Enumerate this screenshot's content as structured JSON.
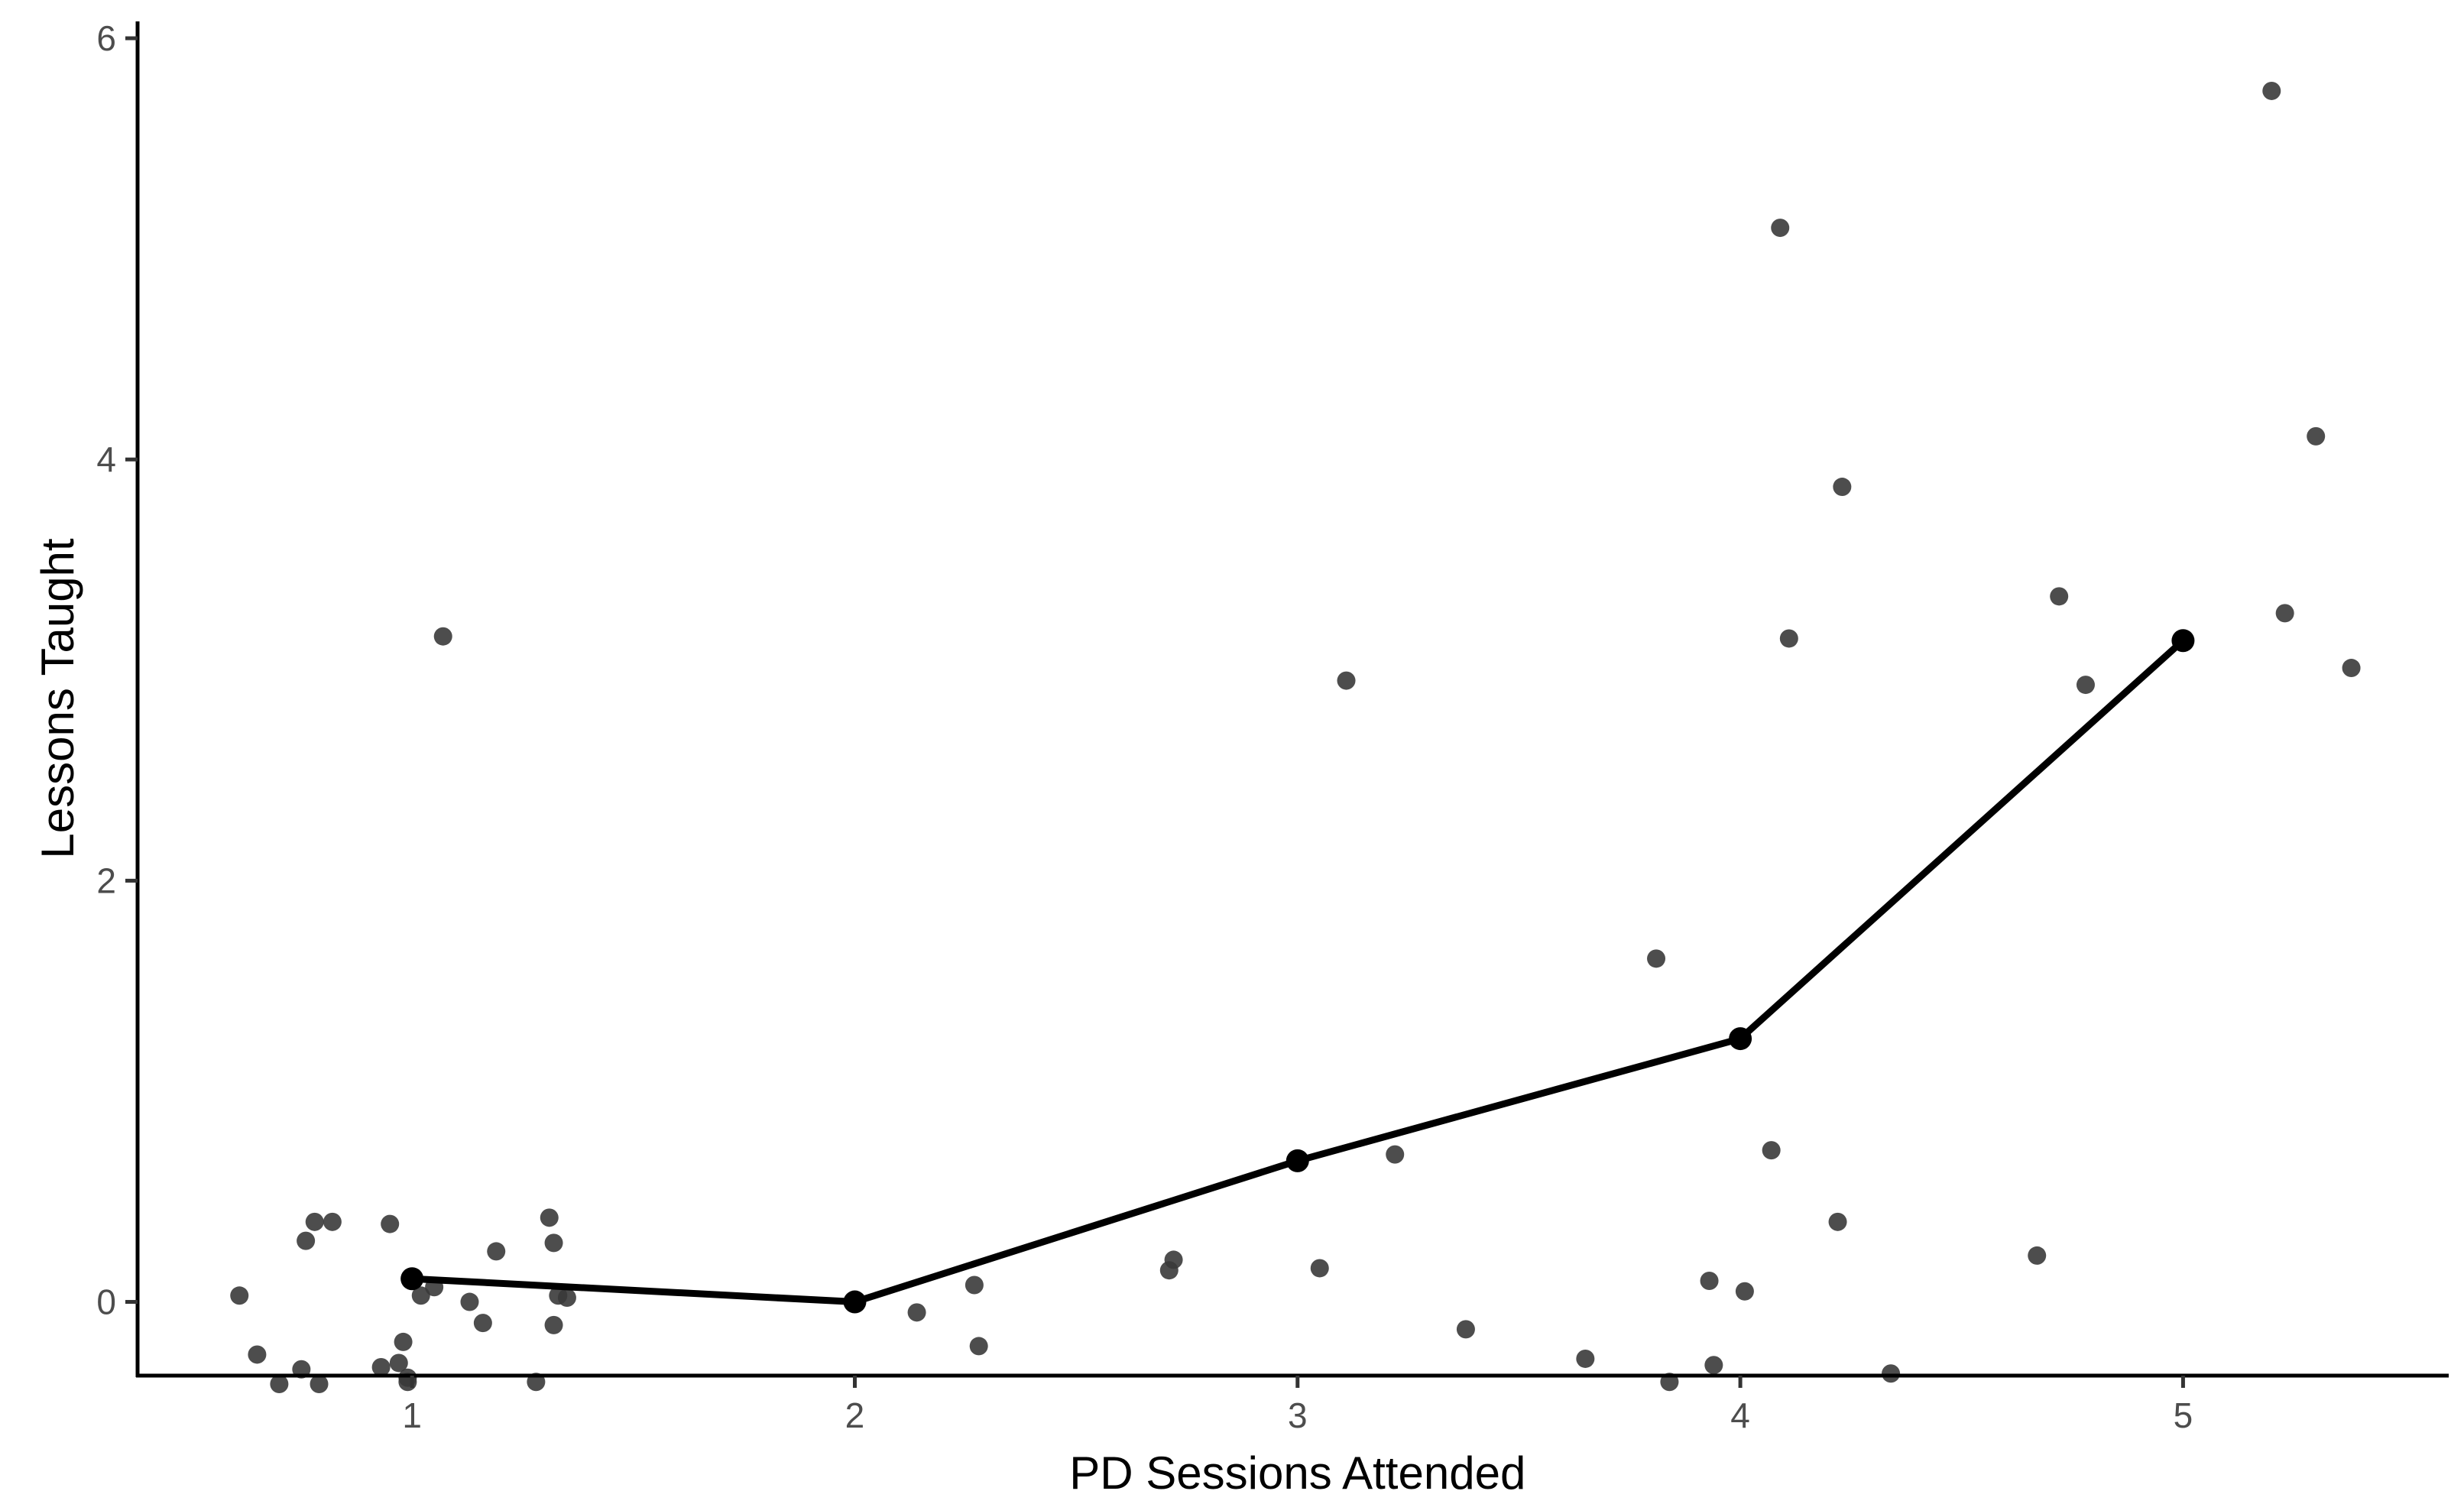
{
  "chart_data": {
    "type": "scatter",
    "title": "",
    "xlabel": "PD Sessions Attended",
    "ylabel": "Lessons Taught",
    "xlim": [
      0.38,
      5.6
    ],
    "ylim": [
      -0.35,
      6.08
    ],
    "x_ticks": [
      {
        "value": 1,
        "label": "1"
      },
      {
        "value": 2,
        "label": "2"
      },
      {
        "value": 3,
        "label": "3"
      },
      {
        "value": 4,
        "label": "4"
      },
      {
        "value": 5,
        "label": "5"
      }
    ],
    "y_ticks": [
      {
        "value": 0,
        "label": "0"
      },
      {
        "value": 2,
        "label": "2"
      },
      {
        "value": 4,
        "label": "4"
      },
      {
        "value": 6,
        "label": "6"
      }
    ],
    "grid": false,
    "legend": "none",
    "colors": {
      "points": "#3a3a3a",
      "mean_line": "#000000",
      "axis": "#000000",
      "tick_label": "#4d4d4d"
    },
    "series": [
      {
        "kind": "jittered-points",
        "points": [
          {
            "x": 0.61,
            "y": 0.03
          },
          {
            "x": 0.65,
            "y": -0.25
          },
          {
            "x": 0.7,
            "y": -0.39
          },
          {
            "x": 0.75,
            "y": -0.32
          },
          {
            "x": 0.76,
            "y": 0.29
          },
          {
            "x": 0.78,
            "y": 0.38
          },
          {
            "x": 0.79,
            "y": -0.39
          },
          {
            "x": 0.82,
            "y": 0.38
          },
          {
            "x": 0.93,
            "y": -0.31
          },
          {
            "x": 0.95,
            "y": 0.37
          },
          {
            "x": 0.97,
            "y": -0.29
          },
          {
            "x": 0.98,
            "y": -0.19
          },
          {
            "x": 0.99,
            "y": -0.36
          },
          {
            "x": 0.99,
            "y": -0.38
          },
          {
            "x": 1.02,
            "y": 0.03
          },
          {
            "x": 1.05,
            "y": 0.07
          },
          {
            "x": 1.07,
            "y": 3.16
          },
          {
            "x": 1.13,
            "y": 0.0
          },
          {
            "x": 1.16,
            "y": -0.1
          },
          {
            "x": 1.19,
            "y": 0.24
          },
          {
            "x": 1.28,
            "y": -0.38
          },
          {
            "x": 1.31,
            "y": 0.4
          },
          {
            "x": 1.32,
            "y": 0.28
          },
          {
            "x": 1.32,
            "y": -0.11
          },
          {
            "x": 1.33,
            "y": 0.03
          },
          {
            "x": 1.35,
            "y": 0.02
          },
          {
            "x": 2.14,
            "y": -0.05
          },
          {
            "x": 2.27,
            "y": 0.08
          },
          {
            "x": 2.28,
            "y": -0.21
          },
          {
            "x": 2.71,
            "y": 0.15
          },
          {
            "x": 2.72,
            "y": 0.2
          },
          {
            "x": 3.05,
            "y": 0.16
          },
          {
            "x": 3.11,
            "y": 2.95
          },
          {
            "x": 3.22,
            "y": 0.7
          },
          {
            "x": 3.38,
            "y": -0.13
          },
          {
            "x": 3.65,
            "y": -0.27
          },
          {
            "x": 3.81,
            "y": 1.63
          },
          {
            "x": 3.84,
            "y": -0.38
          },
          {
            "x": 3.93,
            "y": 0.1
          },
          {
            "x": 3.94,
            "y": -0.3
          },
          {
            "x": 4.01,
            "y": 0.05
          },
          {
            "x": 4.07,
            "y": 0.72
          },
          {
            "x": 4.09,
            "y": 5.1
          },
          {
            "x": 4.11,
            "y": 3.15
          },
          {
            "x": 4.22,
            "y": 0.38
          },
          {
            "x": 4.23,
            "y": 3.87
          },
          {
            "x": 4.34,
            "y": -0.34
          },
          {
            "x": 4.67,
            "y": 0.22
          },
          {
            "x": 4.72,
            "y": 3.35
          },
          {
            "x": 4.78,
            "y": 2.93
          },
          {
            "x": 5.2,
            "y": 5.75
          },
          {
            "x": 5.23,
            "y": 3.27
          },
          {
            "x": 5.3,
            "y": 4.11
          },
          {
            "x": 5.38,
            "y": 3.01
          }
        ]
      },
      {
        "kind": "mean-line",
        "points": [
          {
            "x": 1,
            "y": 0.11
          },
          {
            "x": 2,
            "y": 0.0
          },
          {
            "x": 3,
            "y": 0.67
          },
          {
            "x": 4,
            "y": 1.25
          },
          {
            "x": 5,
            "y": 3.14
          }
        ]
      }
    ]
  }
}
